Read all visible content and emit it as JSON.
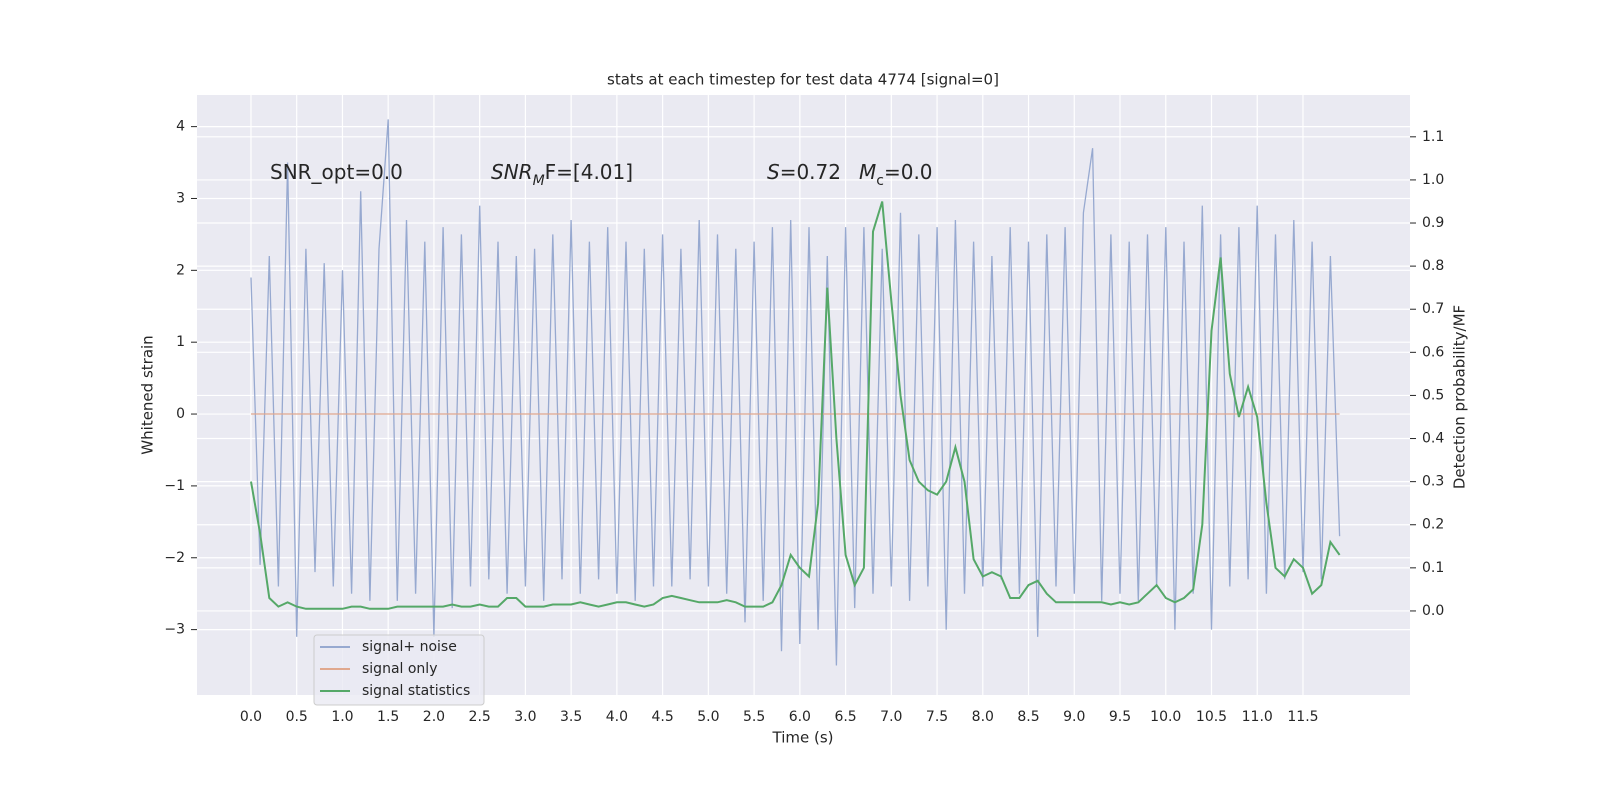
{
  "chart_data": {
    "type": "line",
    "title": "stats at each timestep for test data 4774 [signal=0]",
    "xlabel": "Time (s)",
    "ylabel": "Whitened strain",
    "y2label": "Detection probability/MF",
    "x": [
      0.0,
      0.1,
      0.2,
      0.3,
      0.4,
      0.5,
      0.6,
      0.7,
      0.8,
      0.9,
      1.0,
      1.1,
      1.2,
      1.3,
      1.4,
      1.5,
      1.6,
      1.7,
      1.8,
      1.9,
      2.0,
      2.1,
      2.2,
      2.3,
      2.4,
      2.5,
      2.6,
      2.7,
      2.8,
      2.9,
      3.0,
      3.1,
      3.2,
      3.3,
      3.4,
      3.5,
      3.6,
      3.7,
      3.8,
      3.9,
      4.0,
      4.1,
      4.2,
      4.3,
      4.4,
      4.5,
      4.6,
      4.7,
      4.8,
      4.9,
      5.0,
      5.1,
      5.2,
      5.3,
      5.4,
      5.5,
      5.6,
      5.7,
      5.8,
      5.9,
      6.0,
      6.1,
      6.2,
      6.3,
      6.4,
      6.5,
      6.6,
      6.7,
      6.8,
      6.9,
      7.0,
      7.1,
      7.2,
      7.3,
      7.4,
      7.5,
      7.6,
      7.7,
      7.8,
      7.9,
      8.0,
      8.1,
      8.2,
      8.3,
      8.4,
      8.5,
      8.6,
      8.7,
      8.8,
      8.9,
      9.0,
      9.1,
      9.2,
      9.3,
      9.4,
      9.5,
      9.6,
      9.7,
      9.8,
      9.9,
      10.0,
      10.1,
      10.2,
      10.3,
      10.4,
      10.5,
      10.6,
      10.7,
      10.8,
      10.9,
      11.0,
      11.1,
      11.2,
      11.3,
      11.4,
      11.5,
      11.6,
      11.7,
      11.8,
      11.9
    ],
    "series": [
      {
        "name": "signal+ noise",
        "color": "#97a9d0",
        "values": [
          1.9,
          -2.1,
          2.2,
          -2.4,
          3.5,
          -3.1,
          2.3,
          -2.2,
          2.1,
          -2.4,
          2.0,
          -2.5,
          3.1,
          -2.6,
          2.3,
          4.1,
          -2.6,
          2.7,
          -2.5,
          2.4,
          -3.1,
          2.6,
          -2.7,
          2.5,
          -2.4,
          2.9,
          -2.3,
          2.4,
          -2.5,
          2.2,
          -2.4,
          2.3,
          -2.6,
          2.5,
          -2.3,
          2.7,
          -2.5,
          2.4,
          -2.3,
          2.6,
          -2.5,
          2.4,
          -2.6,
          2.3,
          -2.4,
          2.5,
          -2.4,
          2.3,
          -2.3,
          2.7,
          -2.4,
          2.5,
          -2.5,
          2.3,
          -2.9,
          2.4,
          -2.6,
          2.6,
          -3.3,
          2.7,
          -3.2,
          2.6,
          -3.0,
          2.2,
          -3.5,
          2.6,
          -2.7,
          2.6,
          -2.5,
          2.3,
          -2.4,
          2.8,
          -2.6,
          2.5,
          -2.4,
          2.6,
          -3.0,
          2.7,
          -2.5,
          2.4,
          -2.4,
          2.2,
          -2.3,
          2.6,
          -2.5,
          2.4,
          -3.1,
          2.5,
          -2.4,
          2.6,
          -2.5,
          2.8,
          3.7,
          -2.6,
          2.5,
          -2.5,
          2.4,
          -2.6,
          2.5,
          -2.4,
          2.6,
          -3.0,
          2.4,
          -2.5,
          2.9,
          -3.0,
          2.5,
          -2.4,
          2.6,
          -2.3,
          2.9,
          -2.5,
          2.5,
          -2.3,
          2.7,
          -2.2,
          2.4,
          -2.3,
          2.2,
          -1.7
        ]
      },
      {
        "name": "signal only",
        "color": "#e0a88e",
        "values": [
          0,
          0,
          0,
          0,
          0,
          0,
          0,
          0,
          0,
          0,
          0,
          0,
          0,
          0,
          0,
          0,
          0,
          0,
          0,
          0,
          0,
          0,
          0,
          0,
          0,
          0,
          0,
          0,
          0,
          0,
          0,
          0,
          0,
          0,
          0,
          0,
          0,
          0,
          0,
          0,
          0,
          0,
          0,
          0,
          0,
          0,
          0,
          0,
          0,
          0,
          0,
          0,
          0,
          0,
          0,
          0,
          0,
          0,
          0,
          0,
          0,
          0,
          0,
          0,
          0,
          0,
          0,
          0,
          0,
          0,
          0,
          0,
          0,
          0,
          0,
          0,
          0,
          0,
          0,
          0,
          0,
          0,
          0,
          0,
          0,
          0,
          0,
          0,
          0,
          0,
          0,
          0,
          0,
          0,
          0,
          0,
          0,
          0,
          0,
          0,
          0,
          0,
          0,
          0,
          0,
          0,
          0,
          0,
          0,
          0,
          0,
          0,
          0,
          0,
          0,
          0,
          0,
          0,
          0,
          0
        ]
      },
      {
        "name": "signal statistics",
        "color": "#55a868",
        "axis": "y2",
        "values": [
          0.3,
          0.18,
          0.03,
          0.01,
          0.02,
          0.01,
          0.005,
          0.005,
          0.005,
          0.005,
          0.005,
          0.01,
          0.01,
          0.005,
          0.005,
          0.005,
          0.01,
          0.01,
          0.01,
          0.01,
          0.01,
          0.01,
          0.015,
          0.01,
          0.01,
          0.015,
          0.01,
          0.01,
          0.03,
          0.03,
          0.01,
          0.01,
          0.01,
          0.015,
          0.015,
          0.015,
          0.02,
          0.015,
          0.01,
          0.015,
          0.02,
          0.02,
          0.015,
          0.01,
          0.015,
          0.03,
          0.035,
          0.03,
          0.025,
          0.02,
          0.02,
          0.02,
          0.025,
          0.02,
          0.01,
          0.01,
          0.01,
          0.02,
          0.06,
          0.13,
          0.1,
          0.08,
          0.25,
          0.75,
          0.4,
          0.13,
          0.06,
          0.1,
          0.88,
          0.95,
          0.72,
          0.5,
          0.35,
          0.3,
          0.28,
          0.27,
          0.3,
          0.38,
          0.3,
          0.12,
          0.08,
          0.09,
          0.08,
          0.03,
          0.03,
          0.06,
          0.07,
          0.04,
          0.02,
          0.02,
          0.02,
          0.02,
          0.02,
          0.02,
          0.015,
          0.02,
          0.015,
          0.02,
          0.04,
          0.06,
          0.03,
          0.02,
          0.03,
          0.05,
          0.2,
          0.65,
          0.82,
          0.55,
          0.45,
          0.52,
          0.45,
          0.25,
          0.1,
          0.08,
          0.12,
          0.1,
          0.04,
          0.06,
          0.16,
          0.13
        ]
      }
    ],
    "xlim": [
      -0.59,
      12.67
    ],
    "xticks": [
      {
        "value": 0,
        "label": "0.0"
      },
      0.5,
      {
        "value": 1,
        "label": "1.0"
      },
      1.5,
      {
        "value": 2,
        "label": "2.0"
      },
      2.5,
      {
        "value": 3,
        "label": "3.0"
      },
      3.5,
      {
        "value": 4,
        "label": "4.0"
      },
      4.5,
      {
        "value": 5,
        "label": "5.0"
      },
      5.5,
      {
        "value": 6,
        "label": "6.0"
      },
      6.5,
      {
        "value": 7,
        "label": "7.0"
      },
      7.5,
      {
        "value": 8,
        "label": "8.0"
      },
      8.5,
      {
        "value": 9,
        "label": "9.0"
      },
      9.5,
      {
        "value": 10,
        "label": "10.0"
      },
      10.5,
      {
        "value": 11,
        "label": "11.0"
      },
      11.5
    ],
    "ylim": [
      -3.91,
      4.44
    ],
    "yticks": [
      {
        "value": -3,
        "label": "−3"
      },
      {
        "value": -2,
        "label": "−2"
      },
      {
        "value": -1,
        "label": "−1"
      },
      0,
      1,
      2,
      3,
      4
    ],
    "y2lim": [
      -0.195,
      1.197
    ],
    "y2ticks": [
      {
        "value": 0,
        "label": "0.0"
      },
      0.1,
      0.2,
      0.3,
      0.4,
      0.5,
      0.6,
      0.7,
      0.8,
      0.9,
      {
        "value": 1,
        "label": "1.0"
      },
      1.1
    ],
    "grid": true,
    "legend": "lower left",
    "annotations": [
      [
        {
          "text": "SNR_opt=0.0"
        }
      ],
      [
        {
          "text": "SNR",
          "italic": true
        },
        {
          "text": "M",
          "italic": true,
          "sub": true
        },
        {
          "text": "F=[4.01]"
        }
      ],
      [
        {
          "text": "S",
          "italic": true
        },
        {
          "text": "=0.72"
        }
      ],
      [
        {
          "text": "M",
          "italic": true
        },
        {
          "text": "c",
          "sub": true
        },
        {
          "text": "=0.0"
        }
      ]
    ]
  }
}
